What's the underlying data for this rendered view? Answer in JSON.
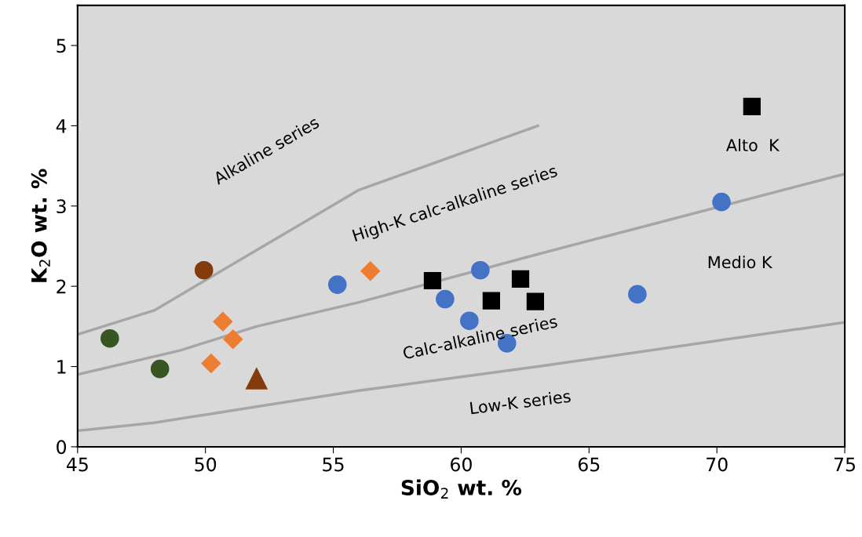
{
  "chart_data": {
    "type": "scatter",
    "xlabel": "SiO$_{2}$ wt. %",
    "ylabel": "K$_{2}$O wt. %",
    "xlim": [
      45,
      75
    ],
    "ylim": [
      0,
      5.5
    ],
    "xticks": [
      45,
      50,
      55,
      60,
      65,
      70,
      75
    ],
    "yticks": [
      0,
      1,
      2,
      3,
      4,
      5
    ],
    "grid": false,
    "legend": false,
    "series": [
      {
        "type": "line",
        "color": "#a6a6a6",
        "marker": "none",
        "x": [
          45,
          48,
          56,
          63
        ],
        "values": [
          1.4,
          1.7,
          3.2,
          4.0
        ]
      },
      {
        "type": "line",
        "color": "#a6a6a6",
        "marker": "none",
        "x": [
          45,
          49,
          52,
          56,
          63,
          75
        ],
        "values": [
          0.9,
          1.2,
          1.5,
          1.8,
          2.4,
          3.4
        ]
      },
      {
        "type": "line",
        "color": "#a6a6a6",
        "marker": "none",
        "x": [
          45,
          48,
          52,
          56,
          63,
          75
        ],
        "values": [
          0.2,
          0.3,
          0.5,
          0.7,
          1.0,
          1.55
        ]
      },
      {
        "color": "#375623",
        "marker": "circle",
        "x": [
          46.26,
          48.22
        ],
        "values": [
          1.35,
          0.97
        ]
      },
      {
        "color": "#843c0c",
        "marker": "circle",
        "x": [
          49.94
        ],
        "values": [
          2.2
        ]
      },
      {
        "color": "#843c0c",
        "marker": "triangle",
        "x": [
          52.0
        ],
        "values": [
          0.85
        ]
      },
      {
        "color": "#ed7d31",
        "marker": "diamond",
        "x": [
          50.68,
          51.08,
          50.22,
          56.45
        ],
        "values": [
          1.56,
          1.34,
          1.04,
          2.19
        ]
      },
      {
        "color": "#4472c4",
        "marker": "circle",
        "x": [
          55.16,
          59.37,
          60.75,
          60.32,
          61.79,
          66.89,
          70.18
        ],
        "values": [
          2.02,
          1.84,
          2.2,
          1.57,
          1.29,
          1.9,
          3.05
        ]
      },
      {
        "color": "#000000",
        "marker": "square",
        "x": [
          58.88,
          61.18,
          62.32,
          62.9,
          71.37
        ],
        "values": [
          2.07,
          1.82,
          2.09,
          1.81,
          4.24
        ]
      }
    ],
    "annotations": [
      "Alkaline series",
      "High-K calc-alkaline series",
      "Calc-alkaline series",
      "Low-K series",
      "Alto  K",
      "Medio K"
    ]
  }
}
